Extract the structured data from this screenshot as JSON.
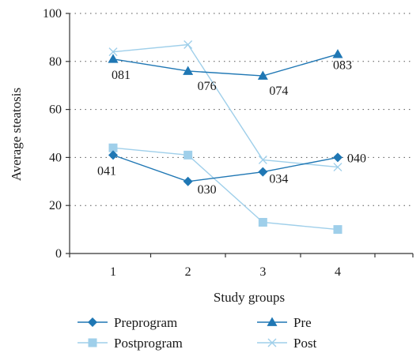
{
  "chart_data": {
    "type": "line",
    "x": [
      1,
      2,
      3,
      4
    ],
    "xlabel": "Study groups",
    "ylabel": "Average steatosis",
    "ylim": [
      0,
      100
    ],
    "yticks": [
      0,
      20,
      40,
      60,
      80,
      100
    ],
    "xtick_labels": [
      "1",
      "2",
      "3",
      "4"
    ],
    "ytick_labels": [
      "0",
      "20",
      "40",
      "60",
      "80",
      "100"
    ],
    "grid": "horizontal-dotted",
    "legend_position": "bottom",
    "series": [
      {
        "name": "Preprogram",
        "values": [
          41,
          30,
          34,
          40
        ],
        "color": "#1f77b4",
        "marker": "diamond",
        "data_labels": [
          "041",
          "030",
          "034",
          "040"
        ]
      },
      {
        "name": "Pre",
        "values": [
          81,
          76,
          74,
          83
        ],
        "color": "#1f77b4",
        "marker": "triangle",
        "data_labels": [
          "081",
          "076",
          "074",
          "083"
        ]
      },
      {
        "name": "Postprogram",
        "values": [
          44,
          41,
          13,
          10
        ],
        "color": "#9fcfea",
        "marker": "square",
        "data_labels": []
      },
      {
        "name": "Post",
        "values": [
          84,
          87,
          39,
          36
        ],
        "color": "#9fcfea",
        "marker": "x",
        "data_labels": []
      }
    ]
  }
}
